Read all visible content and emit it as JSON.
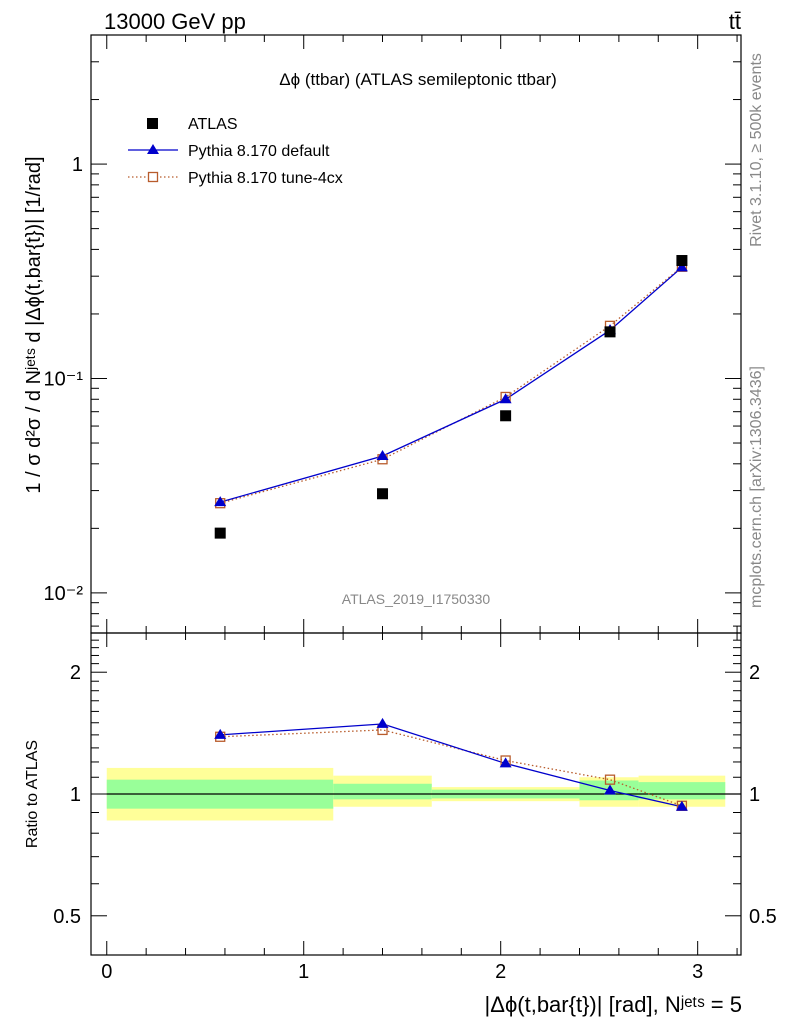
{
  "header": {
    "energy_label": "13000 GeV pp",
    "process_label": "tt̄"
  },
  "side_labels": {
    "rivet": "Rivet 3.1.10, ≥ 500k events",
    "mcplots": "mcplots.cern.ch [arXiv:1306.3436]"
  },
  "chart_data": [
    {
      "type": "scatter",
      "title": "Δϕ (ttbar) (ATLAS semileptonic ttbar)",
      "watermark": "ATLAS_2019_I1750330",
      "ylabel": "1 / σ d²σ / d Nʲᵉᵗˢ d |Δϕ(t,bar{t})| [1/rad]",
      "yscale": "log",
      "ylim": [
        0.0065,
        4.0
      ],
      "xlim": [
        -0.08,
        3.22
      ],
      "ytick_labels": [
        {
          "value": 0.01,
          "label": "10⁻²"
        },
        {
          "value": 0.1,
          "label": "10⁻¹"
        },
        {
          "value": 1,
          "label": "1"
        }
      ],
      "legend_position": "top-left",
      "x": [
        0.576,
        1.4,
        2.025,
        2.555,
        2.92
      ],
      "series": [
        {
          "name": "ATLAS",
          "color": "#000000",
          "marker": "filled-square",
          "values": [
            0.019,
            0.029,
            0.067,
            0.165,
            0.355
          ]
        },
        {
          "name": "Pythia 8.170 default",
          "color": "#0000cc",
          "marker": "filled-triangle",
          "line": "solid",
          "values": [
            0.0265,
            0.0435,
            0.08,
            0.168,
            0.33
          ]
        },
        {
          "name": "Pythia 8.170 tune-4cx",
          "color": "#b85c2c",
          "marker": "open-square",
          "line": "dotted",
          "values": [
            0.0262,
            0.042,
            0.082,
            0.176,
            0.332
          ]
        }
      ]
    },
    {
      "type": "scatter",
      "ylabel": "Ratio to ATLAS",
      "xlabel": "|Δϕ(t,bar{t})| [rad], Nʲᵉᵗˢ = 5",
      "yscale": "log",
      "ylim": [
        0.4,
        2.5
      ],
      "xlim": [
        -0.08,
        3.22
      ],
      "xtick_labels": [
        {
          "value": 0,
          "label": "0"
        },
        {
          "value": 1,
          "label": "1"
        },
        {
          "value": 2,
          "label": "2"
        },
        {
          "value": 3,
          "label": "3"
        }
      ],
      "ytick_labels": [
        {
          "value": 0.5,
          "label": "0.5"
        },
        {
          "value": 1,
          "label": "1"
        },
        {
          "value": 2,
          "label": "2"
        }
      ],
      "reference_value": 1,
      "uncertainty_bands": [
        {
          "x_range": [
            0,
            1.15
          ],
          "inner": [
            0.92,
            1.085
          ],
          "outer": [
            0.86,
            1.16
          ]
        },
        {
          "x_range": [
            1.15,
            1.65
          ],
          "inner": [
            0.97,
            1.06
          ],
          "outer": [
            0.93,
            1.11
          ]
        },
        {
          "x_range": [
            1.65,
            2.4
          ],
          "inner": [
            0.975,
            1.025
          ],
          "outer": [
            0.96,
            1.04
          ]
        },
        {
          "x_range": [
            2.4,
            2.7
          ],
          "inner": [
            0.965,
            1.08
          ],
          "outer": [
            0.93,
            1.1
          ]
        },
        {
          "x_range": [
            2.7,
            3.14
          ],
          "inner": [
            0.97,
            1.07
          ],
          "outer": [
            0.93,
            1.11
          ]
        }
      ],
      "x": [
        0.576,
        1.4,
        2.025,
        2.555,
        2.92
      ],
      "series": [
        {
          "name": "Pythia 8.170 default",
          "color": "#0000cc",
          "marker": "filled-triangle",
          "line": "solid",
          "values": [
            1.4,
            1.49,
            1.19,
            1.02,
            0.93
          ]
        },
        {
          "name": "Pythia 8.170 tune-4cx",
          "color": "#b85c2c",
          "marker": "open-square",
          "line": "dotted",
          "values": [
            1.385,
            1.44,
            1.21,
            1.085,
            0.935
          ]
        }
      ]
    }
  ]
}
